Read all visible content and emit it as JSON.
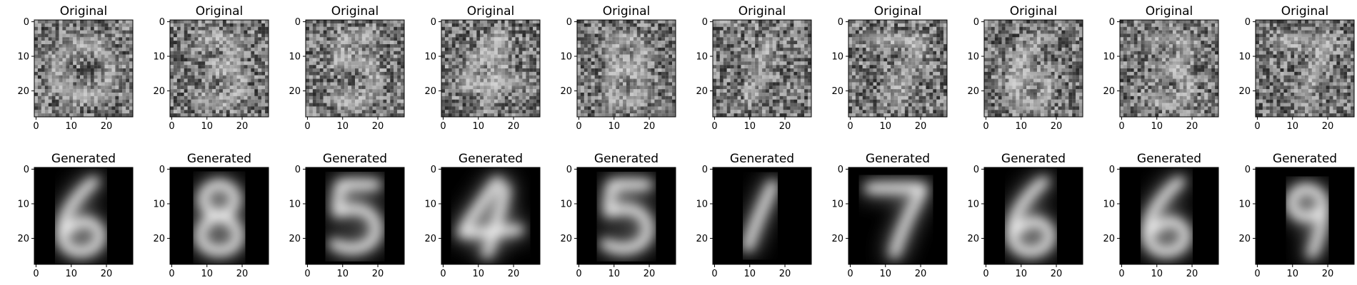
{
  "chart_data": {
    "type": "heatmap",
    "layout": {
      "rows": 2,
      "cols": 10
    },
    "image_size": [
      28,
      28
    ],
    "colormap": "gray",
    "axis_ticks": {
      "x": [
        "0",
        "10",
        "20"
      ],
      "y": [
        "0",
        "10",
        "20"
      ]
    },
    "panels": [
      {
        "row": 0,
        "col": 0,
        "title": "Original",
        "digit": "0",
        "noisy": true
      },
      {
        "row": 0,
        "col": 1,
        "title": "Original",
        "digit": "3",
        "noisy": true
      },
      {
        "row": 0,
        "col": 2,
        "title": "Original",
        "digit": "5",
        "noisy": true
      },
      {
        "row": 0,
        "col": 3,
        "title": "Original",
        "digit": "4",
        "noisy": true
      },
      {
        "row": 0,
        "col": 4,
        "title": "Original",
        "digit": "8",
        "noisy": true
      },
      {
        "row": 0,
        "col": 5,
        "title": "Original",
        "digit": "1",
        "noisy": true
      },
      {
        "row": 0,
        "col": 6,
        "title": "Original",
        "digit": "7",
        "noisy": true
      },
      {
        "row": 0,
        "col": 7,
        "title": "Original",
        "digit": "6",
        "noisy": true
      },
      {
        "row": 0,
        "col": 8,
        "title": "Original",
        "digit": "3",
        "noisy": true
      },
      {
        "row": 0,
        "col": 9,
        "title": "Original",
        "digit": "7",
        "noisy": true
      },
      {
        "row": 1,
        "col": 0,
        "title": "Generated",
        "digit": "6",
        "noisy": false
      },
      {
        "row": 1,
        "col": 1,
        "title": "Generated",
        "digit": "8",
        "noisy": false
      },
      {
        "row": 1,
        "col": 2,
        "title": "Generated",
        "digit": "5",
        "noisy": false
      },
      {
        "row": 1,
        "col": 3,
        "title": "Generated",
        "digit": "4",
        "noisy": false
      },
      {
        "row": 1,
        "col": 4,
        "title": "Generated",
        "digit": "5",
        "noisy": false
      },
      {
        "row": 1,
        "col": 5,
        "title": "Generated",
        "digit": "1",
        "noisy": false
      },
      {
        "row": 1,
        "col": 6,
        "title": "Generated",
        "digit": "7",
        "noisy": false
      },
      {
        "row": 1,
        "col": 7,
        "title": "Generated",
        "digit": "6",
        "noisy": false
      },
      {
        "row": 1,
        "col": 8,
        "title": "Generated",
        "digit": "6",
        "noisy": false
      },
      {
        "row": 1,
        "col": 9,
        "title": "Generated",
        "digit": "9",
        "noisy": false
      }
    ]
  }
}
